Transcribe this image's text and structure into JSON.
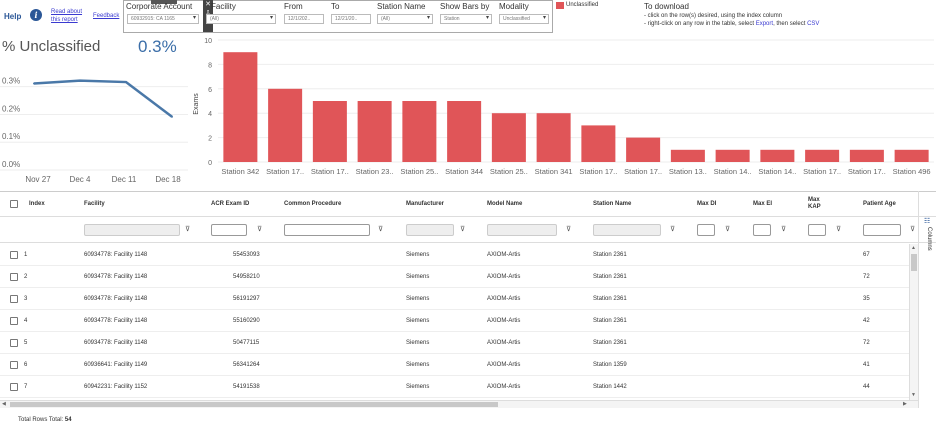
{
  "header": {
    "help": "Help",
    "read_about": "Read about this report",
    "feedback": "Feedback",
    "filters": {
      "corporate_account": {
        "label": "Corporate Account",
        "value": "60932915: CA 1165"
      },
      "facility": {
        "label": "Facility",
        "value": "(All)"
      },
      "from": {
        "label": "From",
        "value": "12/1/202.."
      },
      "to": {
        "label": "To",
        "value": "12/21/20.."
      },
      "station_name": {
        "label": "Station Name",
        "value": "(All)"
      },
      "show_bars_by": {
        "label": "Show Bars by",
        "value": "Station"
      },
      "modality": {
        "label": "Modality",
        "value": "Unclassified"
      }
    },
    "legend_label": "Unclassified",
    "download": {
      "title": "To download",
      "line1": "- click on the row(s) desired, using the index column",
      "line2_pre": "- right-click on any row in the table, select ",
      "line2_export": "Export",
      "line2_mid": ", then select ",
      "line2_csv": "CSV"
    }
  },
  "kpi": {
    "title": "% Unclassified",
    "value": "0.3%"
  },
  "line_chart": {
    "chart_data": {
      "type": "line",
      "x": [
        "Nov 27",
        "Dec 4",
        "Dec 11",
        "Dec 18"
      ],
      "y_ticks": [
        "0.3%",
        "0.2%",
        "0.1%",
        "0.0%"
      ],
      "values": [
        0.29,
        0.3,
        0.295,
        0.17
      ],
      "ylim": [
        0,
        0.36
      ],
      "color": "#4a78a8"
    }
  },
  "bar_chart": {
    "chart_data": {
      "type": "bar",
      "ylabel": "Exams",
      "ylim": [
        0,
        10
      ],
      "y_ticks": [
        "10",
        "8",
        "6",
        "4",
        "2",
        "0"
      ],
      "categories": [
        "Station 342",
        "Station 17..",
        "Station 17..",
        "Station 23..",
        "Station 25..",
        "Station 344",
        "Station 25..",
        "Station 341",
        "Station 17..",
        "Station 17..",
        "Station 13..",
        "Station 14..",
        "Station 14..",
        "Station 17..",
        "Station 17..",
        "Station 496"
      ],
      "values": [
        9,
        6,
        5,
        5,
        5,
        5,
        4,
        4,
        3,
        2,
        1,
        1,
        1,
        1,
        1,
        1
      ],
      "color": "#e05558"
    }
  },
  "table": {
    "columns": [
      "Index",
      "Facility",
      "ACR Exam ID",
      "Common Procedure",
      "Manufacturer",
      "Model Name",
      "Station Name",
      "Max DI",
      "Max EI",
      "Max KAP",
      "Patient Age"
    ],
    "rows": [
      [
        "1",
        "60934778: Facility 1148",
        "55453093",
        "",
        "Siemens",
        "AXIOM-Artis",
        "Station 2361",
        "",
        "",
        "",
        "67"
      ],
      [
        "2",
        "60934778: Facility 1148",
        "54958210",
        "",
        "Siemens",
        "AXIOM-Artis",
        "Station 2361",
        "",
        "",
        "",
        "72"
      ],
      [
        "3",
        "60934778: Facility 1148",
        "56191297",
        "",
        "Siemens",
        "AXIOM-Artis",
        "Station 2361",
        "",
        "",
        "",
        "35"
      ],
      [
        "4",
        "60934778: Facility 1148",
        "55160290",
        "",
        "Siemens",
        "AXIOM-Artis",
        "Station 2361",
        "",
        "",
        "",
        "42"
      ],
      [
        "5",
        "60934778: Facility 1148",
        "50477115",
        "",
        "Siemens",
        "AXIOM-Artis",
        "Station 2361",
        "",
        "",
        "",
        "72"
      ],
      [
        "6",
        "60936641: Facility 1149",
        "56341264",
        "",
        "Siemens",
        "AXIOM-Artis",
        "Station 1359",
        "",
        "",
        "",
        "41"
      ],
      [
        "7",
        "60942231: Facility 1152",
        "54191538",
        "",
        "Siemens",
        "AXIOM-Artis",
        "Station 1442",
        "",
        "",
        "",
        "44"
      ]
    ],
    "columns_panel": "Columns",
    "footer_label": "Total Rows Total:",
    "footer_value": "54"
  }
}
